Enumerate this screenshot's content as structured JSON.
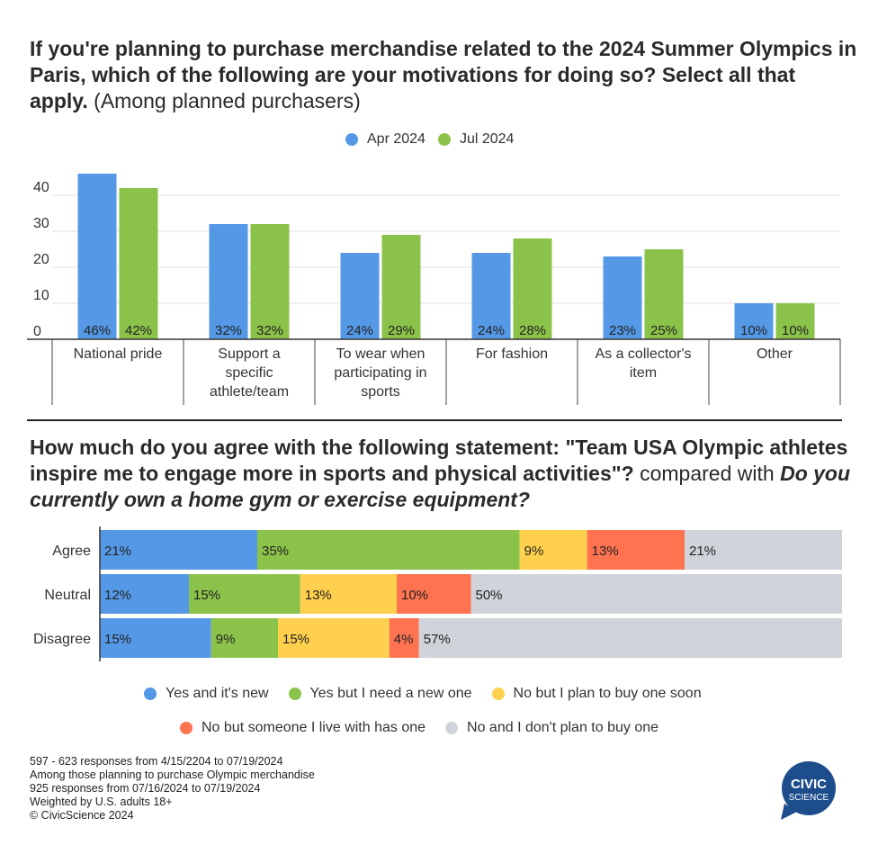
{
  "top_title": {
    "bold": "If you're planning to purchase merchandise related to the 2024 Summer Olympics in Paris, which of the following are your motivations for doing so? Select all that apply.",
    "plain": "(Among planned purchasers)"
  },
  "bottom_title": {
    "bold": "How much do you agree with the following statement: \"Team USA Olympic athletes inspire me to engage more in sports and physical activities\"?",
    "plain": "compared with",
    "bold_italic": "Do you currently own a home gym or exercise equipment?"
  },
  "colors": {
    "blue": "#5599e6",
    "green": "#8bc34a",
    "yellow": "#ffd04d",
    "orange": "#ff7351",
    "gray": "#d0d3da",
    "logo": "#1e4d8c"
  },
  "chart_data": [
    {
      "type": "bar",
      "categories": [
        "National pride",
        "Support a specific athlete/team",
        "To wear when participating in sports",
        "For fashion",
        "As a collector's item",
        "Other"
      ],
      "category_lines": [
        [
          "National pride"
        ],
        [
          "Support a",
          "specific",
          "athlete/team"
        ],
        [
          "To wear when",
          "participating in",
          "sports"
        ],
        [
          "For fashion"
        ],
        [
          "As a collector's",
          "item"
        ],
        [
          "Other"
        ]
      ],
      "series": [
        {
          "name": "Apr 2024",
          "values": [
            46,
            32,
            24,
            24,
            23,
            10
          ],
          "labels": [
            "46%",
            "32%",
            "24%",
            "24%",
            "23%",
            "10%"
          ]
        },
        {
          "name": "Jul 2024",
          "values": [
            42,
            32,
            29,
            28,
            25,
            10
          ],
          "labels": [
            "42%",
            "32%",
            "29%",
            "28%",
            "25%",
            "10%"
          ]
        }
      ],
      "yticks": [
        "0",
        "10",
        "20",
        "30",
        "40"
      ],
      "ylim": [
        0,
        45
      ],
      "grid": true,
      "legend": "top-center"
    },
    {
      "type": "bar",
      "orientation": "horizontal-stacked-100",
      "categories": [
        "Agree",
        "Neutral",
        "Disagree"
      ],
      "series": [
        {
          "name": "Yes and it's new",
          "values": [
            21,
            12,
            15
          ],
          "labels": [
            "21%",
            "12%",
            "15%"
          ]
        },
        {
          "name": "Yes but I need a new one",
          "values": [
            35,
            15,
            9
          ],
          "labels": [
            "35%",
            "15%",
            "9%"
          ]
        },
        {
          "name": "No but I plan to buy one soon",
          "values": [
            9,
            13,
            15
          ],
          "labels": [
            "9%",
            "13%",
            "15%"
          ]
        },
        {
          "name": "No but someone I live with has one",
          "values": [
            13,
            10,
            4
          ],
          "labels": [
            "13%",
            "10%",
            "4%"
          ]
        },
        {
          "name": "No and I don't plan to buy one",
          "values": [
            21,
            50,
            57
          ],
          "labels": [
            "21%",
            "50%",
            "57%"
          ]
        }
      ],
      "legend": "bottom-center"
    }
  ],
  "notes": [
    "597 - 623 responses from 4/15/2204 to 07/19/2024",
    "Among those planning to purchase Olympic merchandise",
    "925 responses from 07/16/2024 to 07/19/2024",
    "Weighted by U.S. adults 18+",
    "© CivicScience 2024"
  ],
  "logo": {
    "line1": "CIVIC",
    "line2": "SCIENCE"
  }
}
